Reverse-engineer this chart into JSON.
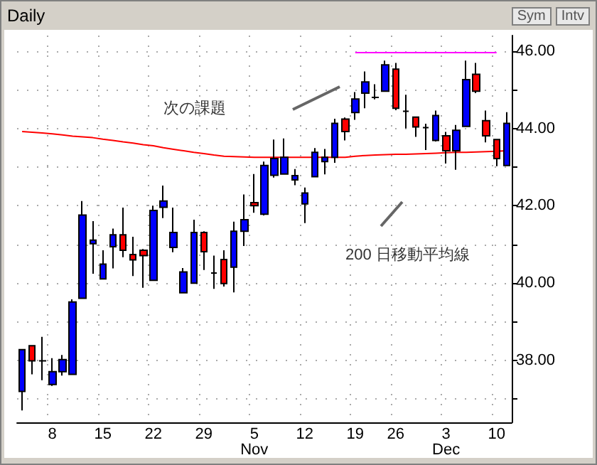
{
  "chart_data": {
    "type": "candlestick",
    "title": "Daily",
    "categories": [
      null,
      null,
      null,
      "8",
      null,
      null,
      null,
      null,
      "15",
      null,
      null,
      null,
      null,
      "22",
      null,
      null,
      null,
      null,
      "29",
      null,
      null,
      null,
      null,
      "5\nNov",
      null,
      null,
      null,
      null,
      "12",
      null,
      null,
      null,
      null,
      "19",
      null,
      null,
      null,
      "26",
      null,
      null,
      null,
      null,
      "3\nDec",
      null,
      null,
      null,
      null,
      "10",
      null
    ],
    "ohlc": [
      [
        37.2,
        38.28,
        36.71,
        38.28
      ],
      [
        38.38,
        38.4,
        37.64,
        37.99
      ],
      [
        37.99,
        38.61,
        37.49,
        37.99
      ],
      [
        37.38,
        38.06,
        37.34,
        37.71
      ],
      [
        37.71,
        38.14,
        37.61,
        38.02
      ],
      [
        37.64,
        39.58,
        37.64,
        39.51
      ],
      [
        39.61,
        42.12,
        39.61,
        41.76
      ],
      [
        41.02,
        41.6,
        40.24,
        41.11
      ],
      [
        40.11,
        40.85,
        40.11,
        40.49
      ],
      [
        40.94,
        41.41,
        40.38,
        41.25
      ],
      [
        41.25,
        41.95,
        40.67,
        40.85
      ],
      [
        40.74,
        41.2,
        40.18,
        40.6
      ],
      [
        40.85,
        40.88,
        39.88,
        40.71
      ],
      [
        40.07,
        42.0,
        40.07,
        41.88
      ],
      [
        41.96,
        42.52,
        41.68,
        42.12
      ],
      [
        40.92,
        41.95,
        40.8,
        41.31
      ],
      [
        39.75,
        40.39,
        39.75,
        40.29
      ],
      [
        40.0,
        41.64,
        40.0,
        41.31
      ],
      [
        41.31,
        41.34,
        40.34,
        40.81
      ],
      [
        40.26,
        40.71,
        39.85,
        40.26
      ],
      [
        40.61,
        40.85,
        39.91,
        39.99
      ],
      [
        40.41,
        41.59,
        39.76,
        41.34
      ],
      [
        41.34,
        42.29,
        40.96,
        41.64
      ],
      [
        42.08,
        42.82,
        41.82,
        42.0
      ],
      [
        41.78,
        43.14,
        41.75,
        43.04
      ],
      [
        42.79,
        43.71,
        42.73,
        43.22
      ],
      [
        42.82,
        43.74,
        42.82,
        43.25
      ],
      [
        42.67,
        42.95,
        42.53,
        42.78
      ],
      [
        42.05,
        42.47,
        41.55,
        42.33
      ],
      [
        42.75,
        43.49,
        42.75,
        43.38
      ],
      [
        43.14,
        43.47,
        42.81,
        43.25
      ],
      [
        43.25,
        44.25,
        43.11,
        44.13
      ],
      [
        44.24,
        44.28,
        43.69,
        43.92
      ],
      [
        44.41,
        44.94,
        44.22,
        44.76
      ],
      [
        44.91,
        45.47,
        44.52,
        45.2
      ],
      [
        44.8,
        45.14,
        44.75,
        44.8
      ],
      [
        44.96,
        45.75,
        44.96,
        45.64
      ],
      [
        45.53,
        45.69,
        44.47,
        44.52
      ],
      [
        44.44,
        44.87,
        44.0,
        44.44
      ],
      [
        44.29,
        44.29,
        43.78,
        44.04
      ],
      [
        44.02,
        44.12,
        43.44,
        44.02
      ],
      [
        43.69,
        44.46,
        43.66,
        44.33
      ],
      [
        43.81,
        43.91,
        43.09,
        43.42
      ],
      [
        43.42,
        44.09,
        42.93,
        43.95
      ],
      [
        44.05,
        45.75,
        44.05,
        45.26
      ],
      [
        45.4,
        45.69,
        44.91,
        44.96
      ],
      [
        44.2,
        44.46,
        43.64,
        43.81
      ],
      [
        43.71,
        43.71,
        43.02,
        43.22
      ],
      [
        43.04,
        44.42,
        43.04,
        44.13
      ]
    ],
    "colors": [
      "#0000ff",
      "#ff0000",
      "#000000",
      "#0000ff",
      "#0000ff",
      "#0000ff",
      "#0000ff",
      "#0000ff",
      "#0000ff",
      "#0000ff",
      "#ff0000",
      "#ff0000",
      "#ff0000",
      "#0000ff",
      "#0000ff",
      "#0000ff",
      "#0000ff",
      "#0000ff",
      "#ff0000",
      "#000000",
      "#ff0000",
      "#0000ff",
      "#0000ff",
      "#ff0000",
      "#0000ff",
      "#0000ff",
      "#0000ff",
      "#0000ff",
      "#0000ff",
      "#0000ff",
      "#0000ff",
      "#0000ff",
      "#ff0000",
      "#0000ff",
      "#0000ff",
      "#000000",
      "#0000ff",
      "#ff0000",
      "#000000",
      "#ff0000",
      "#000000",
      "#0000ff",
      "#ff0000",
      "#0000ff",
      "#0000ff",
      "#ff0000",
      "#ff0000",
      "#ff0000",
      "#0000ff"
    ],
    "series": [
      {
        "type": "line",
        "color": "#ff0000",
        "values": [
          43.92,
          43.9,
          43.88,
          43.86,
          43.83,
          43.8,
          43.78,
          43.76,
          43.72,
          43.69,
          43.65,
          43.62,
          43.58,
          43.55,
          43.5,
          43.46,
          43.42,
          43.38,
          43.35,
          43.31,
          43.28,
          43.27,
          43.26,
          43.25,
          43.25,
          43.25,
          43.25,
          43.25,
          43.25,
          43.25,
          43.25,
          43.25,
          43.25,
          43.28,
          43.3,
          43.31,
          43.32,
          43.33,
          43.33,
          43.34,
          43.35,
          43.36,
          43.37,
          43.38,
          43.38,
          43.39,
          43.4,
          43.41,
          43.42
        ]
      },
      {
        "type": "line",
        "color": "#ff00ff",
        "values": [
          null,
          null,
          null,
          null,
          null,
          null,
          null,
          null,
          null,
          null,
          null,
          null,
          null,
          null,
          null,
          null,
          null,
          null,
          null,
          null,
          null,
          null,
          null,
          null,
          null,
          null,
          null,
          null,
          null,
          null,
          null,
          null,
          null,
          45.96,
          45.96,
          45.96,
          45.96,
          45.96,
          45.96,
          45.96,
          45.96,
          45.96,
          45.96,
          45.96,
          45.96,
          45.96,
          45.96,
          45.96,
          null
        ]
      }
    ],
    "ylim": [
      36.4,
      46.4
    ],
    "yticks": [
      {
        "value": 37,
        "label": null
      },
      {
        "value": 38,
        "label": "38.00"
      },
      {
        "value": 39,
        "label": null
      },
      {
        "value": 40,
        "label": "40.00"
      },
      {
        "value": 41,
        "label": null
      },
      {
        "value": 42,
        "label": "42.00"
      },
      {
        "value": 43,
        "label": null
      },
      {
        "value": 44,
        "label": "44.00"
      },
      {
        "value": 45,
        "label": null
      },
      {
        "value": 46,
        "label": "46.00"
      }
    ],
    "grid": true,
    "marker": "none",
    "annotations": [
      "次の課題",
      "200 日移動平均線",
      "Sym",
      "Intv"
    ]
  }
}
